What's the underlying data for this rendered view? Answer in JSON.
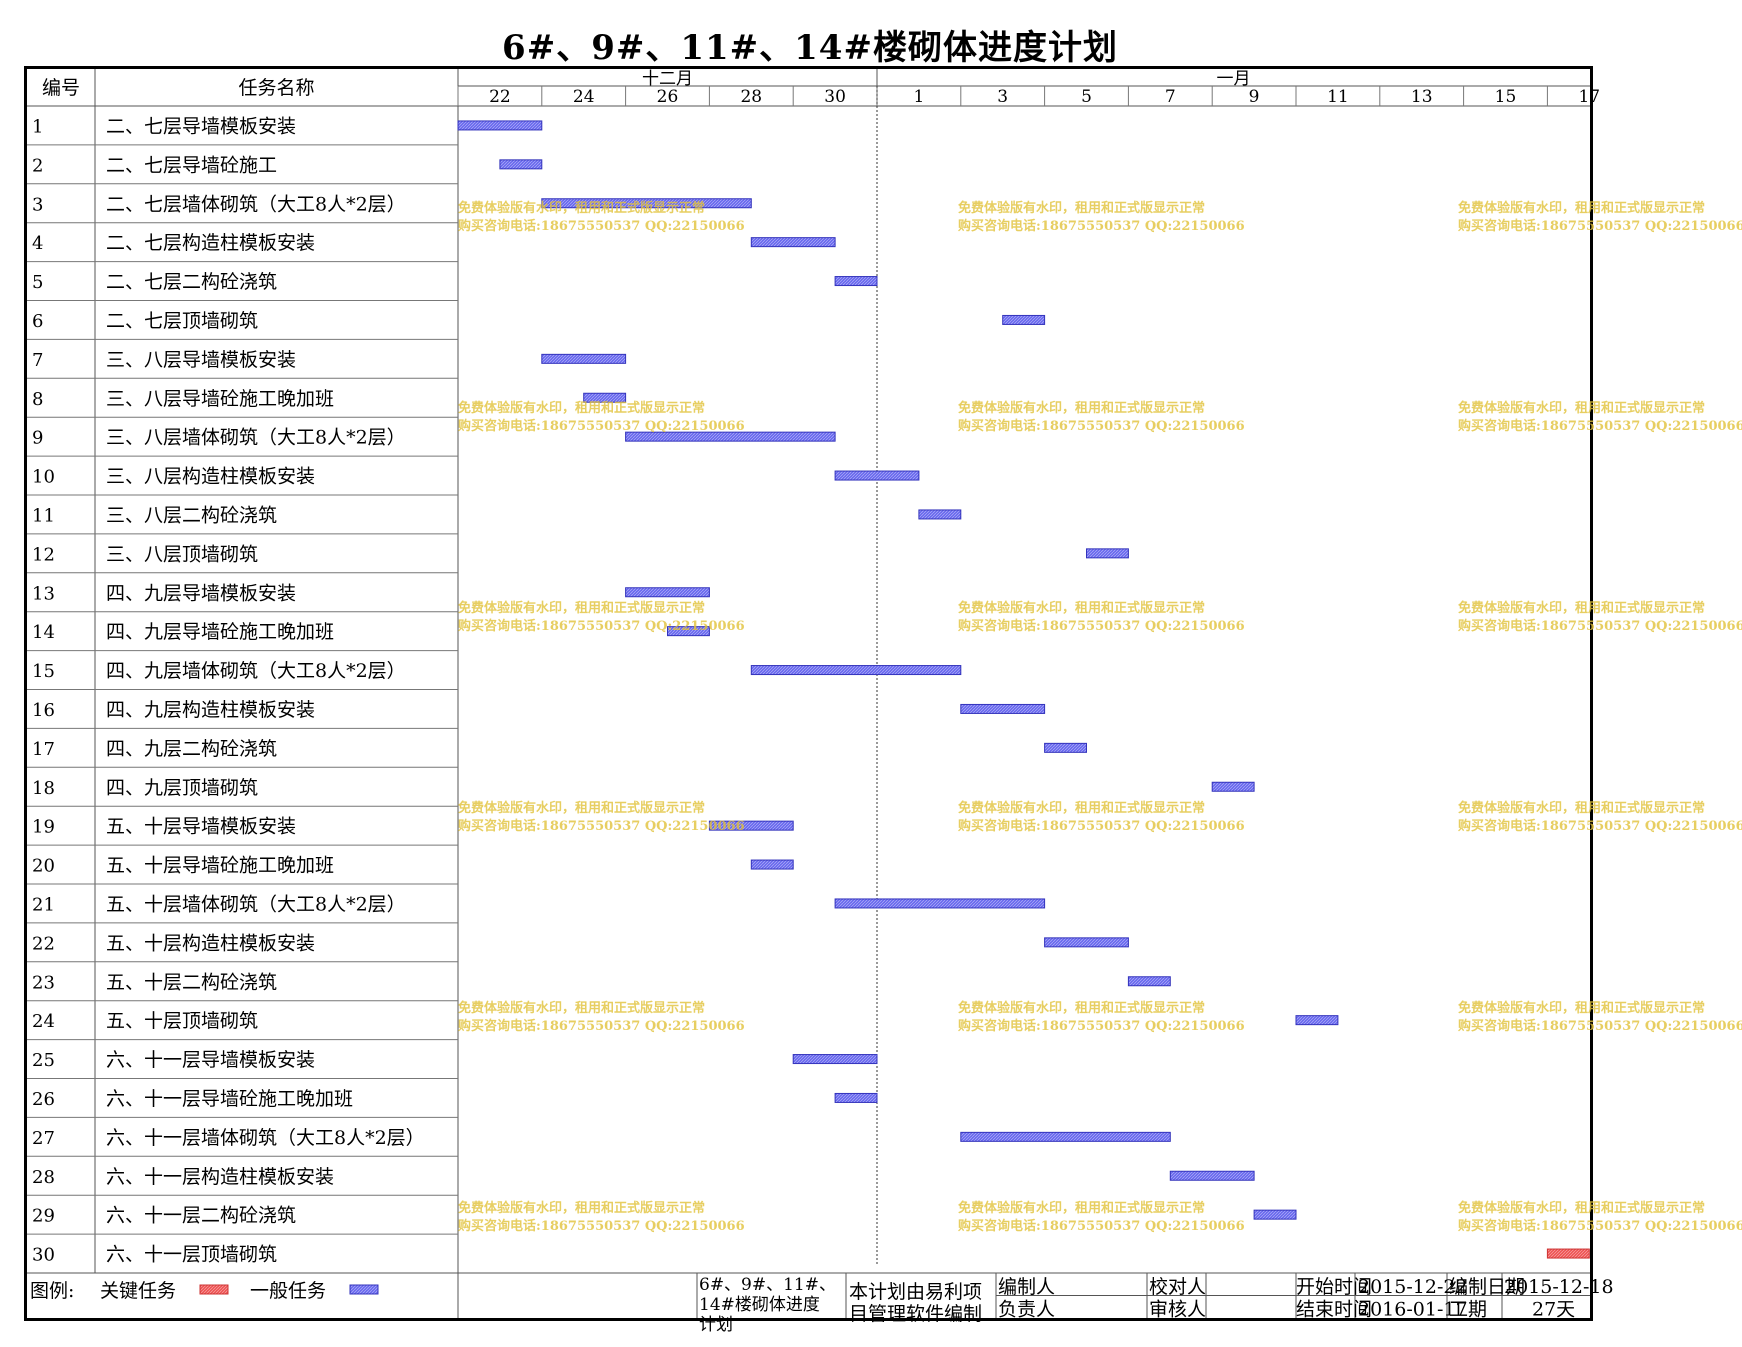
{
  "title": "6#、9#、11#、14#楼砌体进度计划",
  "columns": {
    "id": "编号",
    "name": "任务名称"
  },
  "months": [
    {
      "label": "十二月",
      "start_day": 0
    },
    {
      "label": "一月",
      "start_day": 10
    }
  ],
  "day_ticks": [
    "22",
    "24",
    "26",
    "28",
    "30",
    "1",
    "3",
    "5",
    "7",
    "9",
    "11",
    "13",
    "15",
    "17"
  ],
  "colors": {
    "general": "#6a6aee",
    "critical": "#ee5555",
    "watermark": "#e2c23a"
  },
  "watermark": {
    "line1": "免费体验版有水印，租用和正式版显示正常",
    "line2": "购买咨询电话:18675550537 QQ:22150066"
  },
  "chart_data": {
    "type": "gantt",
    "title": "6#、9#、11#、14#楼砌体进度计划",
    "x_start": "2015-12-22",
    "x_end": "2016-01-18",
    "tasks": [
      {
        "id": "1",
        "name": "二、七层导墙模板安装",
        "start": "2015-12-22",
        "end": "2015-12-23",
        "kind": "general"
      },
      {
        "id": "2",
        "name": "二、七层导墙砼施工",
        "start": "2015-12-23",
        "end": "2015-12-23",
        "kind": "general"
      },
      {
        "id": "3",
        "name": "二、七层墙体砌筑（大工8人*2层）",
        "start": "2015-12-24",
        "end": "2015-12-28",
        "kind": "general"
      },
      {
        "id": "4",
        "name": "二、七层构造柱模板安装",
        "start": "2015-12-29",
        "end": "2015-12-30",
        "kind": "general"
      },
      {
        "id": "5",
        "name": "二、七层二构砼浇筑",
        "start": "2015-12-31",
        "end": "2015-12-31",
        "kind": "general"
      },
      {
        "id": "6",
        "name": "二、七层顶墙砌筑",
        "start": "2016-01-04",
        "end": "2016-01-04",
        "kind": "general"
      },
      {
        "id": "7",
        "name": "三、八层导墙模板安装",
        "start": "2015-12-24",
        "end": "2015-12-25",
        "kind": "general"
      },
      {
        "id": "8",
        "name": "三、八层导墙砼施工晚加班",
        "start": "2015-12-25",
        "end": "2015-12-25",
        "kind": "general"
      },
      {
        "id": "9",
        "name": "三、八层墙体砌筑（大工8人*2层）",
        "start": "2015-12-26",
        "end": "2015-12-30",
        "kind": "general"
      },
      {
        "id": "10",
        "name": "三、八层构造柱模板安装",
        "start": "2015-12-31",
        "end": "2016-01-01",
        "kind": "general"
      },
      {
        "id": "11",
        "name": "三、八层二构砼浇筑",
        "start": "2016-01-02",
        "end": "2016-01-02",
        "kind": "general"
      },
      {
        "id": "12",
        "name": "三、八层顶墙砌筑",
        "start": "2016-01-06",
        "end": "2016-01-06",
        "kind": "general"
      },
      {
        "id": "13",
        "name": "四、九层导墙模板安装",
        "start": "2015-12-26",
        "end": "2015-12-27",
        "kind": "general"
      },
      {
        "id": "14",
        "name": "四、九层导墙砼施工晚加班",
        "start": "2015-12-27",
        "end": "2015-12-27",
        "kind": "general"
      },
      {
        "id": "15",
        "name": "四、九层墙体砌筑（大工8人*2层）",
        "start": "2015-12-29",
        "end": "2016-01-02",
        "kind": "general"
      },
      {
        "id": "16",
        "name": "四、九层构造柱模板安装",
        "start": "2016-01-03",
        "end": "2016-01-04",
        "kind": "general"
      },
      {
        "id": "17",
        "name": "四、九层二构砼浇筑",
        "start": "2016-01-05",
        "end": "2016-01-05",
        "kind": "general"
      },
      {
        "id": "18",
        "name": "四、九层顶墙砌筑",
        "start": "2016-01-09",
        "end": "2016-01-09",
        "kind": "general"
      },
      {
        "id": "19",
        "name": "五、十层导墙模板安装",
        "start": "2015-12-28",
        "end": "2015-12-29",
        "kind": "general"
      },
      {
        "id": "20",
        "name": "五、十层导墙砼施工晚加班",
        "start": "2015-12-29",
        "end": "2015-12-29",
        "kind": "general"
      },
      {
        "id": "21",
        "name": "五、十层墙体砌筑（大工8人*2层）",
        "start": "2015-12-31",
        "end": "2016-01-04",
        "kind": "general"
      },
      {
        "id": "22",
        "name": "五、十层构造柱模板安装",
        "start": "2016-01-05",
        "end": "2016-01-06",
        "kind": "general"
      },
      {
        "id": "23",
        "name": "五、十层二构砼浇筑",
        "start": "2016-01-07",
        "end": "2016-01-07",
        "kind": "general"
      },
      {
        "id": "24",
        "name": "五、十层顶墙砌筑",
        "start": "2016-01-11",
        "end": "2016-01-11",
        "kind": "general"
      },
      {
        "id": "25",
        "name": "六、十一层导墙模板安装",
        "start": "2015-12-30",
        "end": "2015-12-31",
        "kind": "general"
      },
      {
        "id": "26",
        "name": "六、十一层导墙砼施工晚加班",
        "start": "2015-12-31",
        "end": "2015-12-31",
        "kind": "general"
      },
      {
        "id": "27",
        "name": "六、十一层墙体砌筑（大工8人*2层）",
        "start": "2016-01-03",
        "end": "2016-01-07",
        "kind": "general"
      },
      {
        "id": "28",
        "name": "六、十一层构造柱模板安装",
        "start": "2016-01-08",
        "end": "2016-01-09",
        "kind": "general"
      },
      {
        "id": "29",
        "name": "六、十一层二构砼浇筑",
        "start": "2016-01-10",
        "end": "2016-01-10",
        "kind": "general"
      },
      {
        "id": "30",
        "name": "六、十一层顶墙砌筑",
        "start": "2016-01-17",
        "end": "2016-01-17",
        "kind": "critical"
      }
    ]
  },
  "footer": {
    "legend_label": "图例:",
    "legend_critical": "关键任务",
    "legend_general": "一般任务",
    "plan_name": "6#、9#、11#、14#楼砌体进度计划",
    "software_note": "本计划由易利项目管理软件编制",
    "compiler_label": "编制人",
    "checker_label": "校对人",
    "manager_label": "负责人",
    "reviewer_label": "审核人",
    "start_label": "开始时间",
    "start_value": "2015-12-22",
    "end_label": "结束时间",
    "end_value": "2016-01-17",
    "made_label": "编制日期",
    "made_value": "2015-12-18",
    "duration_label": "工期",
    "duration_value": "27天"
  }
}
